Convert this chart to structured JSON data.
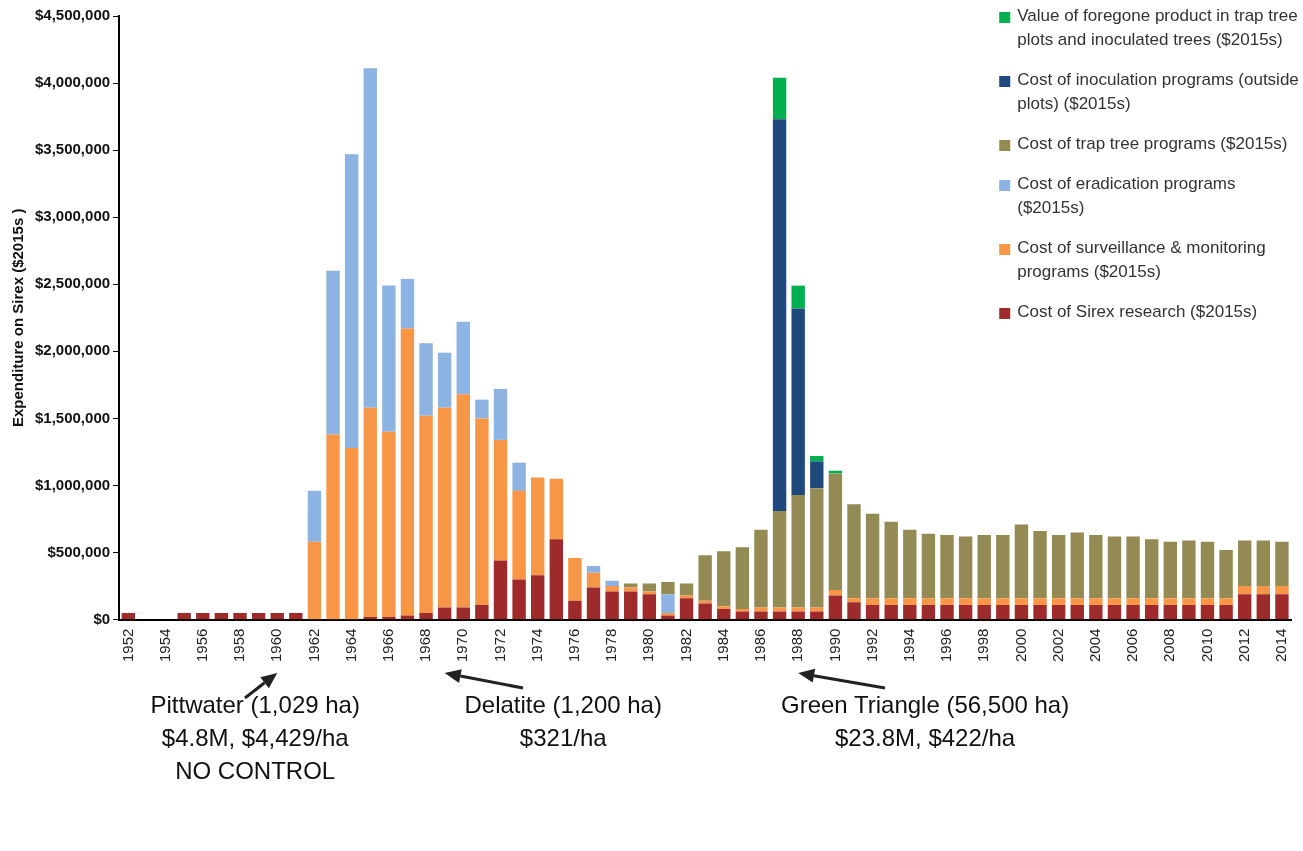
{
  "chart_data": {
    "type": "bar",
    "stacked": true,
    "ylabel": "Expenditure on Sirex ($2015s )",
    "legend": "top right",
    "grid": false,
    "categories": [
      "1952",
      null,
      "1954",
      null,
      "1956",
      null,
      "1958",
      null,
      "1960",
      null,
      "1962",
      null,
      "1964",
      null,
      "1966",
      null,
      "1968",
      null,
      "1970",
      null,
      "1972",
      null,
      "1974",
      null,
      "1976",
      null,
      "1978",
      null,
      "1980",
      null,
      "1982",
      null,
      "1984",
      null,
      "1986",
      null,
      "1988",
      null,
      "1990",
      null,
      "1992",
      null,
      "1994",
      null,
      "1996",
      null,
      "1998",
      null,
      "2000",
      null,
      "2002",
      null,
      "2004",
      null,
      "2006",
      null,
      "2008",
      null,
      "2010",
      null,
      "2012",
      null,
      "2014"
    ],
    "ylim": [
      0,
      4500000
    ],
    "yticks": [
      {
        "value": 0,
        "label": "$0"
      },
      {
        "value": 500000,
        "label": "$500,000"
      },
      {
        "value": 1000000,
        "label": "$1,000,000"
      },
      {
        "value": 1500000,
        "label": "$1,500,000"
      },
      {
        "value": 2000000,
        "label": "$2,000,000"
      },
      {
        "value": 2500000,
        "label": "$2,500,000"
      },
      {
        "value": 3000000,
        "label": "$3,000,000"
      },
      {
        "value": 3500000,
        "label": "$3,500,000"
      },
      {
        "value": 4000000,
        "label": "$4,000,000"
      },
      {
        "value": 4500000,
        "label": "$4,500,000"
      }
    ],
    "series": [
      {
        "name": "Cost of Sirex research ($2015s)",
        "color": "#9e2a2b",
        "values": [
          50000,
          0,
          0,
          50000,
          50000,
          50000,
          50000,
          50000,
          50000,
          50000,
          0,
          0,
          0,
          20000,
          20000,
          30000,
          50000,
          90000,
          90000,
          110000,
          440000,
          300000,
          330000,
          600000,
          140000,
          240000,
          210000,
          210000,
          190000,
          30000,
          160000,
          120000,
          80000,
          60000,
          60000,
          60000,
          60000,
          60000,
          180000,
          130000,
          110000,
          110000,
          110000,
          110000,
          110000,
          110000,
          110000,
          110000,
          110000,
          110000,
          110000,
          110000,
          110000,
          110000,
          110000,
          110000,
          110000,
          110000,
          110000,
          110000,
          190000,
          190000,
          190000
        ]
      },
      {
        "name": "Cost of surveillance & monitoring programs ($2015s)",
        "color": "#f79646",
        "values": [
          0,
          0,
          0,
          0,
          0,
          0,
          0,
          0,
          0,
          0,
          580000,
          1380000,
          1280000,
          1560000,
          1380000,
          2140000,
          1470000,
          1490000,
          1590000,
          1390000,
          900000,
          660000,
          730000,
          450000,
          320000,
          110000,
          40000,
          30000,
          20000,
          20000,
          20000,
          20000,
          20000,
          20000,
          30000,
          30000,
          30000,
          30000,
          40000,
          30000,
          50000,
          50000,
          50000,
          50000,
          50000,
          50000,
          50000,
          50000,
          50000,
          50000,
          50000,
          50000,
          50000,
          50000,
          50000,
          50000,
          50000,
          50000,
          50000,
          50000,
          60000,
          60000,
          60000
        ]
      },
      {
        "name": "Cost of eradication programs ($2015s)",
        "color": "#8db3e2",
        "values": [
          0,
          0,
          0,
          0,
          0,
          0,
          0,
          0,
          0,
          0,
          380000,
          1220000,
          2190000,
          2530000,
          1090000,
          370000,
          540000,
          410000,
          540000,
          140000,
          380000,
          210000,
          0,
          0,
          0,
          50000,
          40000,
          0,
          0,
          140000,
          0,
          0,
          0,
          0,
          0,
          0,
          0,
          0,
          0,
          0,
          0,
          0,
          0,
          0,
          0,
          0,
          0,
          0,
          0,
          0,
          0,
          0,
          0,
          0,
          0,
          0,
          0,
          0,
          0,
          0,
          0,
          0,
          0
        ]
      },
      {
        "name": "Cost of trap tree programs ($2015s)",
        "color": "#948a54",
        "values": [
          0,
          0,
          0,
          0,
          0,
          0,
          0,
          0,
          0,
          0,
          0,
          0,
          0,
          0,
          0,
          0,
          0,
          0,
          0,
          0,
          0,
          0,
          0,
          0,
          0,
          0,
          0,
          30000,
          60000,
          90000,
          90000,
          340000,
          410000,
          460000,
          580000,
          720000,
          840000,
          890000,
          870000,
          700000,
          630000,
          570000,
          510000,
          480000,
          470000,
          460000,
          470000,
          470000,
          550000,
          500000,
          470000,
          490000,
          470000,
          460000,
          460000,
          440000,
          420000,
          430000,
          420000,
          360000,
          340000,
          340000,
          330000
        ]
      },
      {
        "name": "Cost of inoculation programs (outside plots) ($2015s)",
        "color": "#1f497d",
        "values": [
          0,
          0,
          0,
          0,
          0,
          0,
          0,
          0,
          0,
          0,
          0,
          0,
          0,
          0,
          0,
          0,
          0,
          0,
          0,
          0,
          0,
          0,
          0,
          0,
          0,
          0,
          0,
          0,
          0,
          0,
          0,
          0,
          0,
          0,
          0,
          2920000,
          1390000,
          200000,
          0,
          0,
          0,
          0,
          0,
          0,
          0,
          0,
          0,
          0,
          0,
          0,
          0,
          0,
          0,
          0,
          0,
          0,
          0,
          0,
          0,
          0,
          0,
          0,
          0
        ]
      },
      {
        "name": "Value of foregone product in trap tree plots and inoculated trees ($2015s)",
        "color": "#00b050",
        "values": [
          0,
          0,
          0,
          0,
          0,
          0,
          0,
          0,
          0,
          0,
          0,
          0,
          0,
          0,
          0,
          0,
          0,
          0,
          0,
          0,
          0,
          0,
          0,
          0,
          0,
          0,
          0,
          0,
          0,
          0,
          0,
          0,
          0,
          0,
          0,
          310000,
          170000,
          40000,
          20000,
          0,
          0,
          0,
          0,
          0,
          0,
          0,
          0,
          0,
          0,
          0,
          0,
          0,
          0,
          0,
          0,
          0,
          0,
          0,
          0,
          0,
          0,
          0,
          0
        ]
      }
    ],
    "annotations": [
      "Pittwater (1,029 ha)\n$4.8M, $4,429/ha\nNO CONTROL",
      "Delatite (1,200 ha)\n$321/ha",
      "Green Triangle (56,500 ha)\n$23.8M, $422/ha"
    ]
  }
}
